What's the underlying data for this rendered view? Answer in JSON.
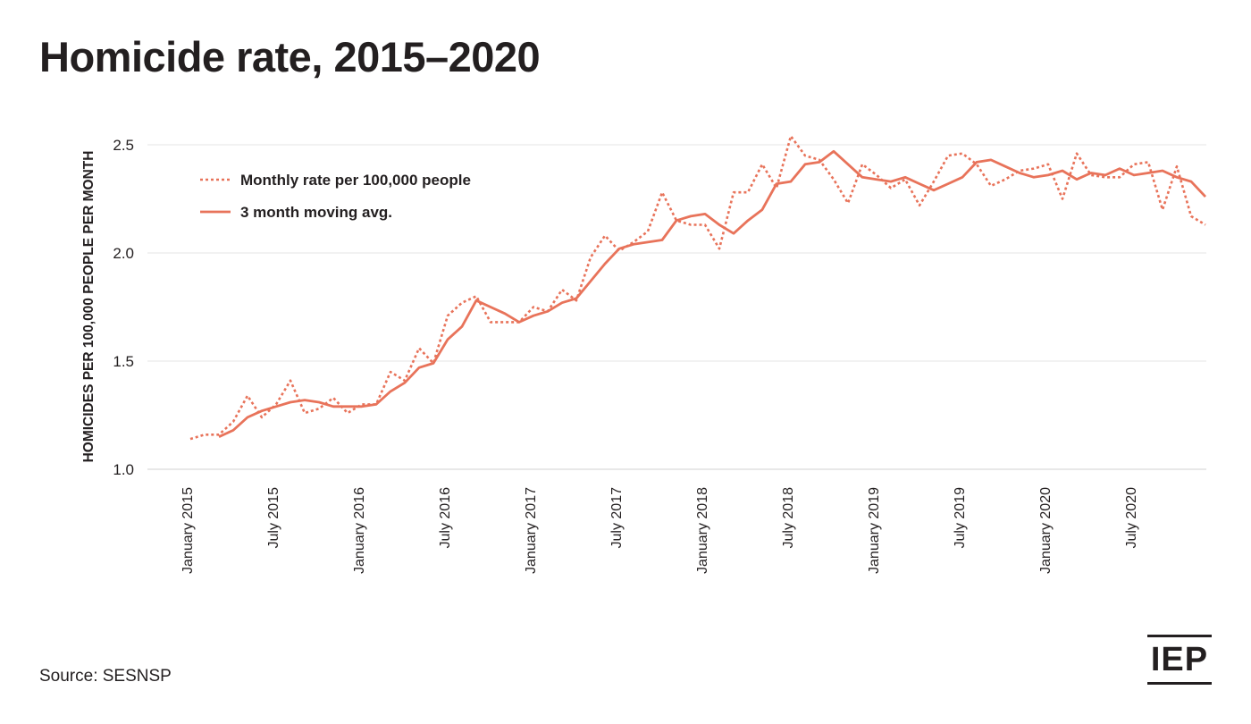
{
  "title": "Homicide rate, 2015–2020",
  "source": "Source: SESNSP",
  "logo_text": "IEP",
  "colors": {
    "line": "#e8735a",
    "text": "#231f20",
    "grid": "#e6e6e6"
  },
  "chart_data": {
    "type": "line",
    "ylabel": "HOMICIDES PER 100,000 PEOPLE PER MONTH",
    "ylim": [
      1.0,
      2.5
    ],
    "yticks": [
      1.0,
      1.5,
      2.0,
      2.5
    ],
    "ytick_labels": [
      "1.0",
      "1.5",
      "2.0",
      "2.5"
    ],
    "xticks": [
      {
        "label": "January 2015",
        "index": 0
      },
      {
        "label": "July 2015",
        "index": 6
      },
      {
        "label": "January 2016",
        "index": 12
      },
      {
        "label": "July 2016",
        "index": 18
      },
      {
        "label": "January 2017",
        "index": 24
      },
      {
        "label": "July 2017",
        "index": 30
      },
      {
        "label": "January 2018",
        "index": 36
      },
      {
        "label": "July 2018",
        "index": 42
      },
      {
        "label": "January 2019",
        "index": 48
      },
      {
        "label": "July 2019",
        "index": 54
      },
      {
        "label": "January 2020",
        "index": 60
      },
      {
        "label": "July 2020",
        "index": 66
      }
    ],
    "grid": true,
    "legend_position": "top-left",
    "series": [
      {
        "name": "Monthly rate per 100,000 people",
        "style": "dotted",
        "start_index": 0,
        "values": [
          1.14,
          1.16,
          1.16,
          1.22,
          1.34,
          1.24,
          1.3,
          1.41,
          1.26,
          1.28,
          1.33,
          1.26,
          1.3,
          1.3,
          1.45,
          1.41,
          1.56,
          1.49,
          1.71,
          1.77,
          1.8,
          1.68,
          1.68,
          1.68,
          1.75,
          1.73,
          1.83,
          1.78,
          1.98,
          2.08,
          2.01,
          2.05,
          2.1,
          2.28,
          2.15,
          2.13,
          2.13,
          2.02,
          2.28,
          2.28,
          2.41,
          2.3,
          2.54,
          2.45,
          2.43,
          2.34,
          2.23,
          2.41,
          2.36,
          2.3,
          2.34,
          2.22,
          2.33,
          2.45,
          2.46,
          2.41,
          2.31,
          2.34,
          2.38,
          2.39,
          2.41,
          2.25,
          2.46,
          2.36,
          2.35,
          2.35,
          2.41,
          2.42,
          2.2,
          2.4,
          2.17,
          2.13
        ]
      },
      {
        "name": "3 month moving avg.",
        "style": "solid",
        "start_index": 2,
        "values": [
          1.15,
          1.18,
          1.24,
          1.27,
          1.29,
          1.31,
          1.32,
          1.31,
          1.29,
          1.29,
          1.29,
          1.3,
          1.36,
          1.4,
          1.47,
          1.49,
          1.6,
          1.66,
          1.78,
          1.75,
          1.72,
          1.68,
          1.71,
          1.73,
          1.77,
          1.79,
          1.87,
          1.95,
          2.02,
          2.04,
          2.05,
          2.06,
          2.15,
          2.17,
          2.18,
          2.13,
          2.09,
          2.15,
          2.2,
          2.32,
          2.33,
          2.41,
          2.42,
          2.47,
          2.41,
          2.35,
          2.34,
          2.33,
          2.35,
          2.32,
          2.29,
          2.32,
          2.35,
          2.42,
          2.43,
          2.4,
          2.37,
          2.35,
          2.36,
          2.38,
          2.34,
          2.37,
          2.36,
          2.39,
          2.36,
          2.37,
          2.38,
          2.35,
          2.33,
          2.26
        ]
      }
    ]
  }
}
